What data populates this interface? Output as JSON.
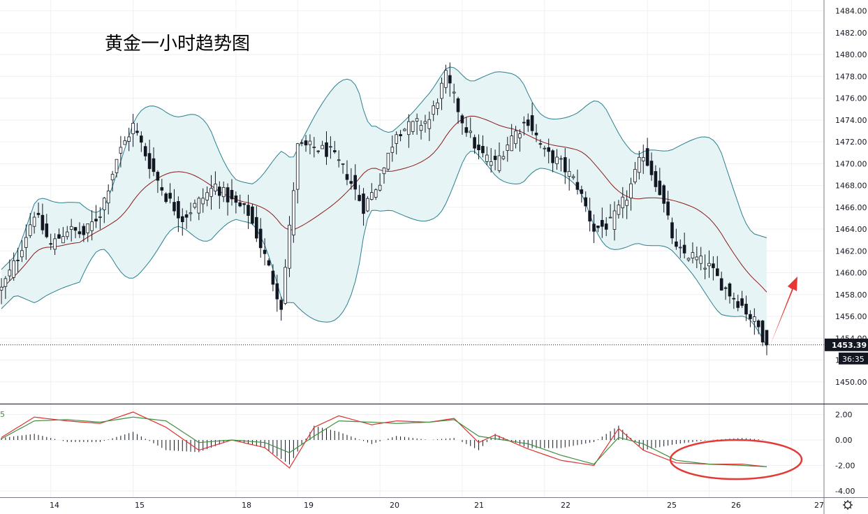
{
  "chart_data": [
    {
      "type": "candlestick",
      "title": "黄金一小时趋势图",
      "ylim": [
        1448,
        1485
      ],
      "yticks": [
        1450.0,
        1452.0,
        1454.0,
        1456.0,
        1458.0,
        1460.0,
        1462.0,
        1464.0,
        1466.0,
        1468.0,
        1470.0,
        1472.0,
        1474.0,
        1476.0,
        1478.0,
        1480.0,
        1482.0,
        1484.0
      ],
      "ytick_labels": [
        "1450.00",
        "1452.00",
        "1454.00",
        "1456.00",
        "1458.00",
        "1460.00",
        "1462.00",
        "1464.00",
        "1466.00",
        "1468.00",
        "1470.00",
        "1472.00",
        "1474.00",
        "1476.00",
        "1478.00",
        "1480.00",
        "1482.00",
        "1484.00"
      ],
      "x_tick_labels": [
        "14",
        "15",
        "18",
        "19",
        "20",
        "21",
        "22",
        "25",
        "26",
        "27"
      ],
      "last_price": 1453.39,
      "last_price_label": "1453.39",
      "countdown_label": "36:35",
      "grid": true,
      "series_colors": {
        "up": "#ffffff",
        "down": "#131722",
        "ma": "#8b1a1a",
        "band": "#2a7f8f",
        "band_fill": "#e6f4f5"
      },
      "key_points": [
        {
          "x": 0,
          "close": 1458.5
        },
        {
          "x": 4,
          "close": 1461.5
        },
        {
          "x": 8,
          "close": 1465.5
        },
        {
          "x": 12,
          "close": 1462.5
        },
        {
          "x": 16,
          "close": 1464
        },
        {
          "x": 20,
          "close": 1463.5
        },
        {
          "x": 24,
          "close": 1465.5
        },
        {
          "x": 28,
          "close": 1470.5
        },
        {
          "x": 32,
          "close": 1473.5
        },
        {
          "x": 36,
          "close": 1470
        },
        {
          "x": 40,
          "close": 1467
        },
        {
          "x": 44,
          "close": 1465
        },
        {
          "x": 48,
          "close": 1466.5
        },
        {
          "x": 52,
          "close": 1468
        },
        {
          "x": 56,
          "close": 1466.5
        },
        {
          "x": 60,
          "close": 1465.5
        },
        {
          "x": 64,
          "close": 1461.5
        },
        {
          "x": 68,
          "close": 1457
        },
        {
          "x": 70,
          "close": 1464
        },
        {
          "x": 72,
          "close": 1471.5
        },
        {
          "x": 76,
          "close": 1471.5
        },
        {
          "x": 80,
          "close": 1471
        },
        {
          "x": 84,
          "close": 1469
        },
        {
          "x": 88,
          "close": 1466
        },
        {
          "x": 92,
          "close": 1468.5
        },
        {
          "x": 96,
          "close": 1473
        },
        {
          "x": 100,
          "close": 1473.5
        },
        {
          "x": 104,
          "close": 1474
        },
        {
          "x": 108,
          "close": 1478
        },
        {
          "x": 112,
          "close": 1474
        },
        {
          "x": 116,
          "close": 1471
        },
        {
          "x": 120,
          "close": 1470
        },
        {
          "x": 124,
          "close": 1472.5
        },
        {
          "x": 128,
          "close": 1474
        },
        {
          "x": 132,
          "close": 1471
        },
        {
          "x": 136,
          "close": 1470
        },
        {
          "x": 140,
          "close": 1468
        },
        {
          "x": 144,
          "close": 1464
        },
        {
          "x": 148,
          "close": 1464.5
        },
        {
          "x": 152,
          "close": 1467
        },
        {
          "x": 156,
          "close": 1471
        },
        {
          "x": 160,
          "close": 1467.5
        },
        {
          "x": 164,
          "close": 1462
        },
        {
          "x": 168,
          "close": 1461.5
        },
        {
          "x": 172,
          "close": 1460.5
        },
        {
          "x": 176,
          "close": 1458.5
        },
        {
          "x": 180,
          "close": 1457
        },
        {
          "x": 184,
          "close": 1455
        },
        {
          "x": 186,
          "close": 1453.39
        }
      ]
    },
    {
      "type": "line",
      "name_label": "5",
      "ylim": [
        -4.5,
        2.8
      ],
      "yticks": [
        2.0,
        0.0,
        -2.0,
        -4.0
      ],
      "ytick_labels": [
        "2.00",
        "0.00",
        "-2.00",
        "-4.00"
      ],
      "series_colors": {
        "fast": "#e03030",
        "slow": "#3f8f3f",
        "hist": "#131722"
      },
      "annotation_color": "#e53935",
      "key_points": [
        {
          "x": 0,
          "fast": 0.2,
          "slow": 0.1
        },
        {
          "x": 8,
          "fast": 1.8,
          "slow": 1.5
        },
        {
          "x": 16,
          "fast": 1.5,
          "slow": 1.6
        },
        {
          "x": 24,
          "fast": 1.3,
          "slow": 1.4
        },
        {
          "x": 32,
          "fast": 2.2,
          "slow": 1.8
        },
        {
          "x": 40,
          "fast": 1.0,
          "slow": 1.5
        },
        {
          "x": 48,
          "fast": -0.8,
          "slow": -0.2
        },
        {
          "x": 56,
          "fast": 0.0,
          "slow": 0.0
        },
        {
          "x": 64,
          "fast": -0.6,
          "slow": -0.2
        },
        {
          "x": 70,
          "fast": -2.2,
          "slow": -1.0
        },
        {
          "x": 76,
          "fast": 1.0,
          "slow": 0.3
        },
        {
          "x": 82,
          "fast": 1.9,
          "slow": 1.5
        },
        {
          "x": 90,
          "fast": 1.2,
          "slow": 1.4
        },
        {
          "x": 96,
          "fast": 1.5,
          "slow": 1.3
        },
        {
          "x": 104,
          "fast": 1.4,
          "slow": 1.4
        },
        {
          "x": 110,
          "fast": 1.7,
          "slow": 1.6
        },
        {
          "x": 116,
          "fast": -0.2,
          "slow": 0.3
        },
        {
          "x": 120,
          "fast": 0.4,
          "slow": 0.1
        },
        {
          "x": 128,
          "fast": -0.7,
          "slow": -0.3
        },
        {
          "x": 136,
          "fast": -1.6,
          "slow": -1.2
        },
        {
          "x": 144,
          "fast": -2.0,
          "slow": -1.9
        },
        {
          "x": 150,
          "fast": 0.9,
          "slow": 0.2
        },
        {
          "x": 156,
          "fast": -0.8,
          "slow": -0.3
        },
        {
          "x": 164,
          "fast": -1.8,
          "slow": -1.6
        },
        {
          "x": 172,
          "fast": -1.9,
          "slow": -1.9
        },
        {
          "x": 180,
          "fast": -1.9,
          "slow": -2.0
        },
        {
          "x": 186,
          "fast": -2.1,
          "slow": -2.1
        }
      ]
    }
  ]
}
